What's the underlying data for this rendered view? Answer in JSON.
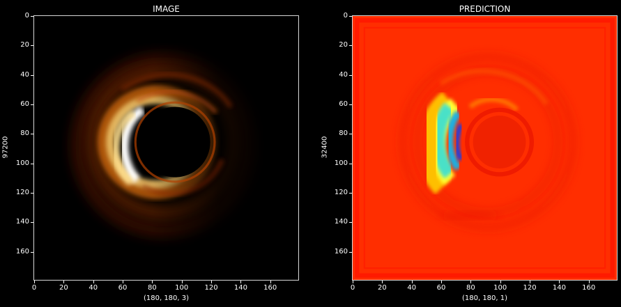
{
  "panels": [
    {
      "title": "IMAGE",
      "xlabel": "(180, 180, 3)",
      "ylabel": "97200",
      "colormap": "afmhot",
      "xticks": [
        0,
        20,
        40,
        60,
        80,
        100,
        120,
        140,
        160
      ],
      "yticks": [
        0,
        20,
        40,
        60,
        80,
        100,
        120,
        140,
        160
      ],
      "extent": [
        0,
        180
      ]
    },
    {
      "title": "PREDICTION",
      "xlabel": "(180, 180, 1)",
      "ylabel": "32400",
      "colormap": "jet",
      "xticks": [
        0,
        20,
        40,
        60,
        80,
        100,
        120,
        140,
        160
      ],
      "yticks": [
        0,
        20,
        40,
        60,
        80,
        100,
        120,
        140,
        160
      ],
      "extent": [
        0,
        180
      ]
    }
  ],
  "colors": {
    "background": "#000000",
    "axes": "#d8d8d8",
    "text": "#ffffff"
  }
}
